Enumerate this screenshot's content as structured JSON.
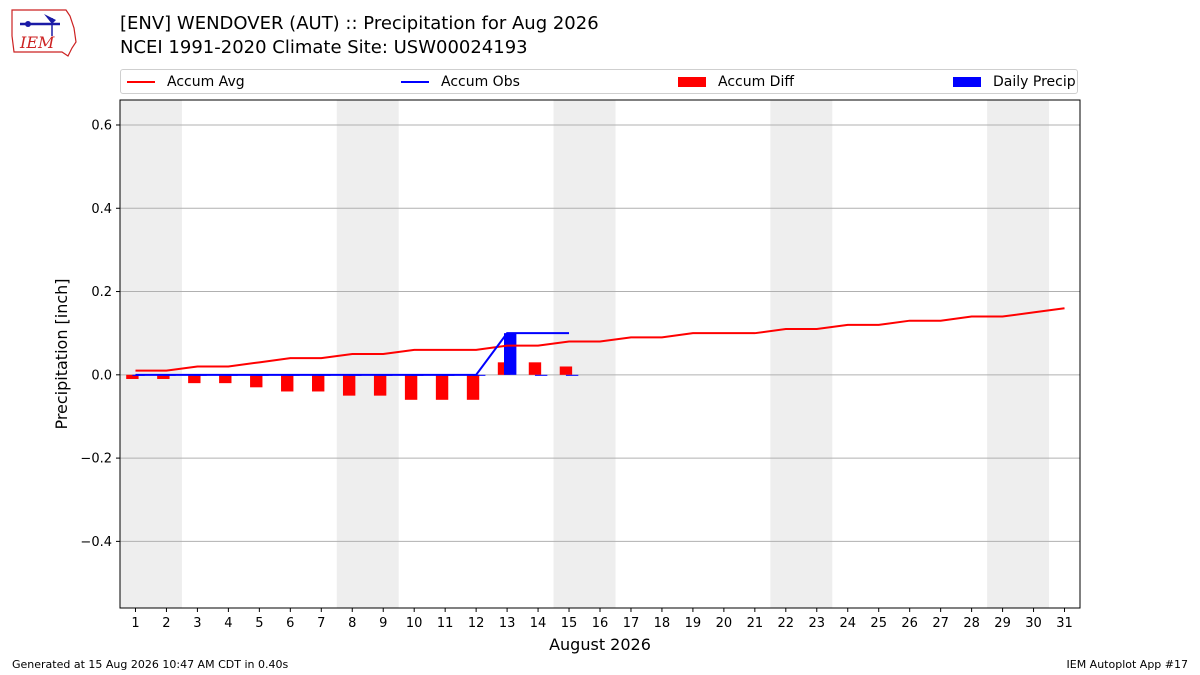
{
  "header": {
    "title_line1": "[ENV] WENDOVER (AUT) :: Precipitation for Aug 2026",
    "title_line2": "NCEI 1991-2020 Climate Site: USW00024193"
  },
  "logo": {
    "text": "IEM",
    "accent": "#cc2222",
    "icon_color": "#1a1aa6"
  },
  "footer": {
    "left": "Generated at 15 Aug 2026 10:47 AM CDT in 0.40s",
    "right": "IEM Autoplot App #17"
  },
  "chart_data": {
    "type": "bar",
    "title": "[ENV] WENDOVER (AUT) :: Precipitation for Aug 2026",
    "subtitle": "NCEI 1991-2020 Climate Site: USW00024193",
    "xlabel": "August 2026",
    "ylabel": "Precipitation [inch]",
    "ylim": [
      -0.56,
      0.66
    ],
    "xlim": [
      0.5,
      31.5
    ],
    "yticks": [
      -0.4,
      -0.2,
      0.0,
      0.2,
      0.4,
      0.6
    ],
    "ytick_labels": [
      "−0.4",
      "−0.2",
      "0.0",
      "0.2",
      "0.4",
      "0.6"
    ],
    "categories": [
      "1",
      "2",
      "3",
      "4",
      "5",
      "6",
      "7",
      "8",
      "9",
      "10",
      "11",
      "12",
      "13",
      "14",
      "15",
      "16",
      "17",
      "18",
      "19",
      "20",
      "21",
      "22",
      "23",
      "24",
      "25",
      "26",
      "27",
      "28",
      "29",
      "30",
      "31"
    ],
    "grid": "horizontal",
    "legend_placement": "top",
    "weekend_bands": [
      [
        0.5,
        2.5
      ],
      [
        7.5,
        9.5
      ],
      [
        14.5,
        16.5
      ],
      [
        21.5,
        23.5
      ],
      [
        28.5,
        30.5
      ]
    ],
    "series": [
      {
        "name": "Accum Avg",
        "kind": "line",
        "color": "#ff0000",
        "x": [
          1,
          2,
          3,
          4,
          5,
          6,
          7,
          8,
          9,
          10,
          11,
          12,
          13,
          14,
          15,
          16,
          17,
          18,
          19,
          20,
          21,
          22,
          23,
          24,
          25,
          26,
          27,
          28,
          29,
          30,
          31
        ],
        "values": [
          0.01,
          0.01,
          0.02,
          0.02,
          0.03,
          0.04,
          0.04,
          0.05,
          0.05,
          0.06,
          0.06,
          0.06,
          0.07,
          0.07,
          0.08,
          0.08,
          0.09,
          0.09,
          0.1,
          0.1,
          0.1,
          0.11,
          0.11,
          0.12,
          0.12,
          0.13,
          0.13,
          0.14,
          0.14,
          0.15,
          0.16
        ]
      },
      {
        "name": "Accum Obs",
        "kind": "line",
        "color": "#0000ff",
        "x": [
          1,
          2,
          3,
          4,
          5,
          6,
          7,
          8,
          9,
          10,
          11,
          12,
          13,
          14,
          15
        ],
        "values": [
          0,
          0,
          0,
          0,
          0,
          0,
          0,
          0,
          0,
          0,
          0,
          0,
          0.1,
          0.1,
          0.1
        ]
      },
      {
        "name": "Accum Diff",
        "kind": "bar",
        "color": "#ff0000",
        "x": [
          1,
          2,
          3,
          4,
          5,
          6,
          7,
          8,
          9,
          10,
          11,
          12,
          13,
          14,
          15
        ],
        "values": [
          -0.01,
          -0.01,
          -0.02,
          -0.02,
          -0.03,
          -0.04,
          -0.04,
          -0.05,
          -0.05,
          -0.06,
          -0.06,
          -0.06,
          0.03,
          0.03,
          0.02
        ]
      },
      {
        "name": "Daily Precip",
        "kind": "bar",
        "color": "#0000ff",
        "x": [
          1,
          2,
          3,
          4,
          5,
          6,
          7,
          8,
          9,
          10,
          11,
          12,
          13,
          14,
          15
        ],
        "values": [
          0,
          0,
          0,
          0,
          0,
          0,
          0,
          0,
          0,
          0,
          0,
          0,
          0.1,
          0,
          0
        ]
      }
    ]
  }
}
